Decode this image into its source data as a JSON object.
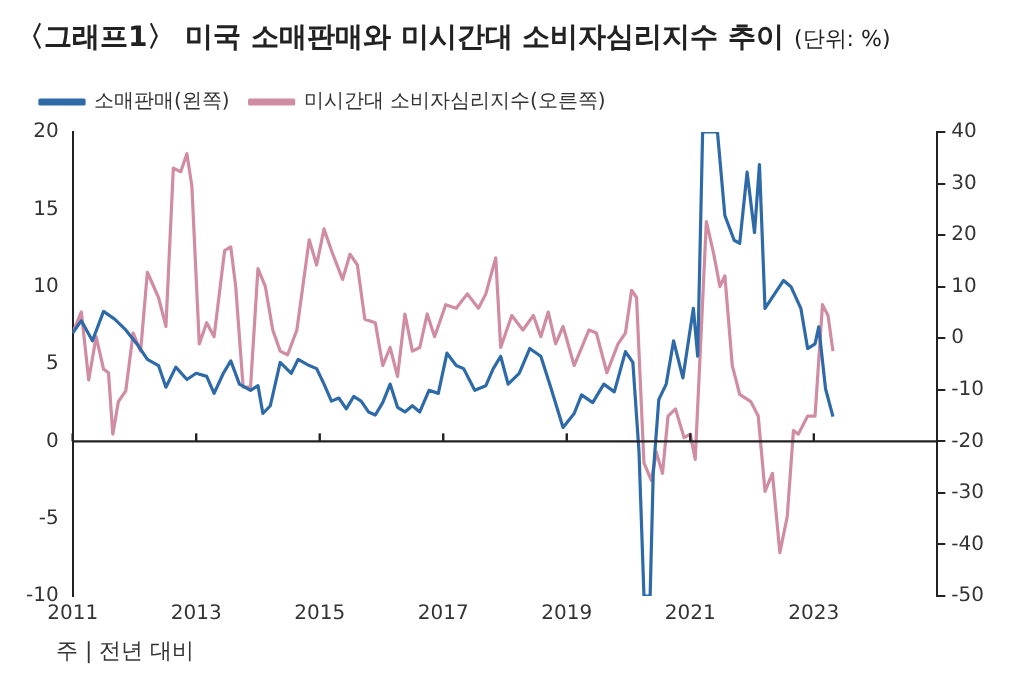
{
  "chart_data": {
    "type": "line",
    "title": "〈그래프1〉 미국 소매판매와 미시간대 소비자심리지수 추이",
    "subtitle": "(단위: %)",
    "annotations": [
      "주 | 전년 대비"
    ],
    "xlim": [
      2011,
      2025
    ],
    "xticks": [
      2011,
      2013,
      2015,
      2017,
      2019,
      2021,
      2023
    ],
    "ylim": [
      -10,
      20
    ],
    "yticks": [
      -10,
      -5,
      0,
      5,
      10,
      15,
      20
    ],
    "y2lim": [
      -50,
      40
    ],
    "y2ticks": [
      -50,
      -40,
      -30,
      -20,
      -10,
      0,
      10,
      20,
      30,
      40
    ],
    "grid": false,
    "legend": "top",
    "marker": "none",
    "line_style": "solid",
    "ref_lines": [
      {
        "axis": "y",
        "value": 0,
        "color": "#222222"
      }
    ],
    "series": [
      {
        "name": "소매판매(왼쪽)",
        "color": "#2e6aa8",
        "x": [
          2011.0,
          2011.14,
          2011.32,
          2011.5,
          2011.68,
          2011.86,
          2012.04,
          2012.21,
          2012.39,
          2012.51,
          2012.67,
          2012.85,
          2013.0,
          2013.17,
          2013.29,
          2013.44,
          2013.56,
          2013.7,
          2013.88,
          2014.0,
          2014.08,
          2014.2,
          2014.36,
          2014.54,
          2014.65,
          2014.83,
          2014.95,
          2015.07,
          2015.19,
          2015.31,
          2015.43,
          2015.55,
          2015.67,
          2015.79,
          2015.9,
          2016.02,
          2016.14,
          2016.26,
          2016.38,
          2016.5,
          2016.62,
          2016.77,
          2016.92,
          2017.06,
          2017.21,
          2017.33,
          2017.51,
          2017.69,
          2017.81,
          2017.93,
          2018.05,
          2018.23,
          2018.4,
          2018.58,
          2018.74,
          2018.94,
          2019.12,
          2019.24,
          2019.42,
          2019.6,
          2019.77,
          2019.95,
          2020.07,
          2020.17,
          2020.25,
          2020.35,
          2020.4,
          2020.49,
          2020.61,
          2020.73,
          2020.88,
          2021.05,
          2021.12,
          2021.2,
          2021.44,
          2021.56,
          2021.71,
          2021.8,
          2021.92,
          2022.04,
          2022.12,
          2022.21,
          2022.36,
          2022.51,
          2022.63,
          2022.79,
          2022.9,
          2023.02,
          2023.08,
          2023.19,
          2023.31
        ],
        "values": [
          7.0,
          7.8,
          6.5,
          8.4,
          7.9,
          7.2,
          6.3,
          5.3,
          4.9,
          3.5,
          4.8,
          4.0,
          4.4,
          4.2,
          3.1,
          4.4,
          5.2,
          3.7,
          3.3,
          3.6,
          1.8,
          2.3,
          5.1,
          4.4,
          5.3,
          4.9,
          4.7,
          3.7,
          2.6,
          2.8,
          2.1,
          2.9,
          2.6,
          1.9,
          1.7,
          2.5,
          3.7,
          2.2,
          1.9,
          2.3,
          1.9,
          3.3,
          3.1,
          5.7,
          4.9,
          4.7,
          3.3,
          3.6,
          4.7,
          5.5,
          3.7,
          4.4,
          6.0,
          5.5,
          3.5,
          0.9,
          1.8,
          3.0,
          2.5,
          3.7,
          3.2,
          5.8,
          5.1,
          -0.7,
          -10,
          -10,
          -2.1,
          2.7,
          3.7,
          6.5,
          4.1,
          8.6,
          5.5,
          20,
          20,
          14.6,
          13.0,
          12.8,
          17.4,
          13.5,
          17.9,
          8.6,
          9.5,
          10.4,
          10.0,
          8.6,
          6.0,
          6.3,
          7.4,
          3.4,
          1.6
        ]
      },
      {
        "name": "미시간대 소비자심리지수(오른쪽)",
        "color": "#d08ca3",
        "axis": "y2",
        "x": [
          2011.0,
          2011.14,
          2011.26,
          2011.38,
          2011.5,
          2011.58,
          2011.65,
          2011.74,
          2011.86,
          2011.98,
          2012.1,
          2012.21,
          2012.39,
          2012.51,
          2012.63,
          2012.75,
          2012.85,
          2012.93,
          2013.05,
          2013.17,
          2013.29,
          2013.46,
          2013.56,
          2013.64,
          2013.76,
          2013.88,
          2014.0,
          2014.12,
          2014.24,
          2014.36,
          2014.48,
          2014.63,
          2014.83,
          2014.95,
          2015.07,
          2015.19,
          2015.37,
          2015.49,
          2015.61,
          2015.73,
          2015.9,
          2016.02,
          2016.14,
          2016.26,
          2016.38,
          2016.5,
          2016.62,
          2016.74,
          2016.86,
          2017.04,
          2017.21,
          2017.39,
          2017.57,
          2017.69,
          2017.85,
          2017.93,
          2018.11,
          2018.29,
          2018.46,
          2018.58,
          2018.7,
          2018.82,
          2018.94,
          2019.12,
          2019.36,
          2019.48,
          2019.65,
          2019.83,
          2019.95,
          2020.05,
          2020.13,
          2020.25,
          2020.37,
          2020.45,
          2020.55,
          2020.64,
          2020.76,
          2020.9,
          2021.0,
          2021.08,
          2021.26,
          2021.38,
          2021.48,
          2021.56,
          2021.68,
          2021.8,
          2021.98,
          2022.1,
          2022.21,
          2022.33,
          2022.45,
          2022.57,
          2022.67,
          2022.75,
          2022.9,
          2023.02,
          2023.14,
          2023.23,
          2023.31
        ],
        "values": [
          1.0,
          5.1,
          -8.1,
          0.3,
          -6.0,
          -6.7,
          -18.6,
          -12.3,
          -10.2,
          1.0,
          -2.5,
          12.8,
          7.9,
          2.3,
          33.0,
          32.3,
          35.8,
          29.5,
          -1.1,
          3.0,
          0.3,
          17.0,
          17.7,
          10.0,
          -9.5,
          -9.5,
          13.5,
          10.0,
          1.6,
          -2.5,
          -3.2,
          1.6,
          19.1,
          14.2,
          21.2,
          17.0,
          11.4,
          16.3,
          14.2,
          3.7,
          3.0,
          -5.3,
          -1.8,
          -7.4,
          4.7,
          -2.5,
          -1.8,
          4.7,
          0.3,
          6.5,
          5.8,
          8.6,
          5.8,
          8.6,
          15.6,
          -1.8,
          4.4,
          1.6,
          4.4,
          0.3,
          5.1,
          -1.1,
          2.3,
          -5.3,
          1.6,
          1.0,
          -6.7,
          -1.1,
          1.0,
          9.3,
          7.9,
          -24.2,
          -27.6,
          -22.1,
          -26.2,
          -15.1,
          -13.7,
          -19.3,
          -18.6,
          -23.5,
          22.6,
          16.3,
          10.0,
          12.1,
          -5.3,
          -10.9,
          -12.3,
          -15.1,
          -29.7,
          -26.2,
          -41.6,
          -34.6,
          -17.9,
          -18.6,
          -15.1,
          -15.1,
          6.5,
          4.4,
          -2.5
        ]
      }
    ]
  }
}
